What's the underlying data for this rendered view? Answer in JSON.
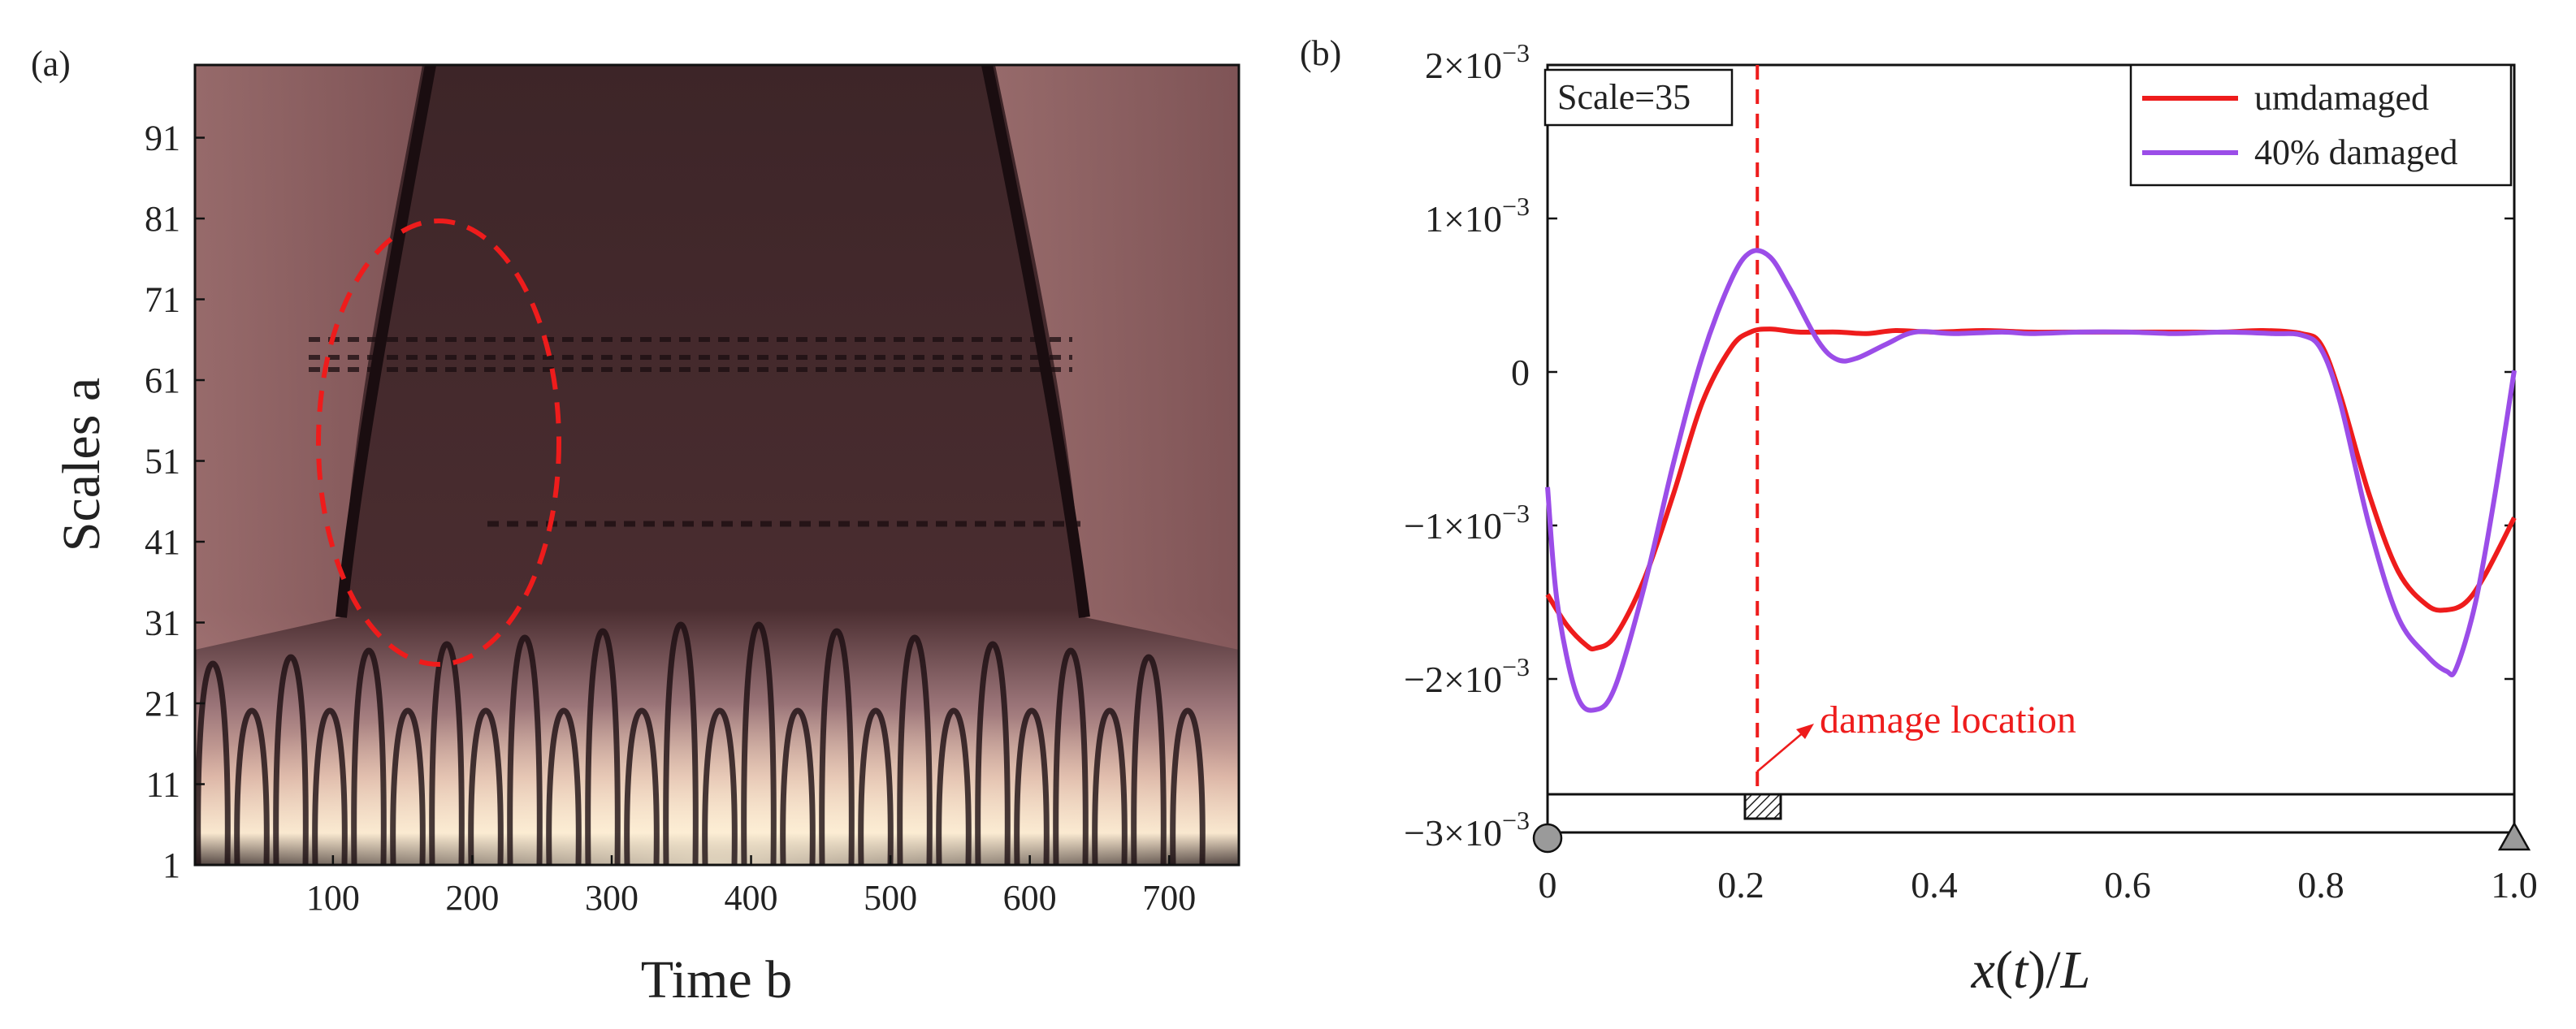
{
  "panel_a": {
    "label": "(a)",
    "xlabel": "Time b",
    "ylabel": "Scales a",
    "colors": {
      "dark": "#1a0d10",
      "mid": "#5a3a3d",
      "light": "#f5e0c8",
      "marker": "#ee1c1c"
    }
  },
  "panel_b": {
    "label": "(b)",
    "scale_box": "Scale=35",
    "annotation": "damage location",
    "colors": {
      "undamaged": "#ee1c1c",
      "damaged": "#9b4de8",
      "marker": "#ee1c1c"
    }
  },
  "chart_data": [
    {
      "type": "heatmap",
      "title": "",
      "xlabel": "Time b",
      "ylabel": "Scales a",
      "x_ticks": [
        100,
        200,
        300,
        400,
        500,
        600,
        700
      ],
      "y_ticks": [
        1,
        11,
        21,
        31,
        41,
        51,
        61,
        71,
        81,
        91
      ],
      "xlim": [
        1,
        750
      ],
      "ylim": [
        1,
        100
      ],
      "annotation": "dashed ellipse centred near time 175, scale 53"
    },
    {
      "type": "line",
      "title": "",
      "xlabel": "x(t)/L",
      "ylabel": "",
      "x_ticks": [
        "0",
        "0.2",
        "0.4",
        "0.6",
        "0.8",
        "1.0"
      ],
      "y_ticks": [
        {
          "base": "-3×10",
          "exp": "-3"
        },
        {
          "base": "-2×10",
          "exp": "-3"
        },
        {
          "base": "-1×10",
          "exp": "-3"
        },
        {
          "base": "0",
          "exp": ""
        },
        {
          "base": "1×10",
          "exp": "-3"
        },
        {
          "base": "2×10",
          "exp": "-3"
        }
      ],
      "xlim": [
        0,
        1.0
      ],
      "ylim": [
        -0.003,
        0.002
      ],
      "legend_position": "top-right",
      "damage_location_x": 0.217,
      "series": [
        {
          "name": "umdamaged",
          "x": [
            0,
            0.02,
            0.04,
            0.05,
            0.07,
            0.1,
            0.13,
            0.16,
            0.19,
            0.21,
            0.23,
            0.26,
            0.3,
            0.33,
            0.36,
            0.4,
            0.45,
            0.5,
            0.55,
            0.6,
            0.65,
            0.7,
            0.74,
            0.78,
            0.8,
            0.82,
            0.85,
            0.88,
            0.91,
            0.93,
            0.95,
            0.97,
            1.0
          ],
          "y": [
            -0.00145,
            -0.00165,
            -0.00178,
            -0.0018,
            -0.00172,
            -0.00135,
            -0.0008,
            -0.0002,
            0.00016,
            0.00026,
            0.00028,
            0.00026,
            0.00026,
            0.00025,
            0.00027,
            0.00026,
            0.00027,
            0.00026,
            0.00026,
            0.00026,
            0.00026,
            0.00026,
            0.00027,
            0.00025,
            0.00018,
            -0.00015,
            -0.0008,
            -0.0013,
            -0.00152,
            -0.00155,
            -0.0015,
            -0.00132,
            -0.00095
          ]
        },
        {
          "name": "40% damaged",
          "x": [
            0,
            0.01,
            0.03,
            0.05,
            0.07,
            0.1,
            0.13,
            0.16,
            0.19,
            0.21,
            0.23,
            0.25,
            0.28,
            0.3,
            0.32,
            0.35,
            0.38,
            0.42,
            0.47,
            0.5,
            0.55,
            0.6,
            0.65,
            0.7,
            0.75,
            0.78,
            0.8,
            0.82,
            0.85,
            0.88,
            0.91,
            0.93,
            0.94,
            0.96,
            0.98,
            1.0
          ],
          "y": [
            -0.00075,
            -0.0015,
            -0.0021,
            -0.0022,
            -0.00205,
            -0.0014,
            -0.0006,
            0.0001,
            0.0006,
            0.00078,
            0.00075,
            0.00055,
            0.0002,
            8e-05,
            9e-05,
            0.00018,
            0.00026,
            0.00025,
            0.00026,
            0.00025,
            0.00026,
            0.00026,
            0.00025,
            0.00026,
            0.00025,
            0.00024,
            0.00015,
            -0.0002,
            -0.001,
            -0.0016,
            -0.00185,
            -0.00195,
            -0.00193,
            -0.0015,
            -0.0008,
            1e-05
          ]
        }
      ]
    }
  ]
}
